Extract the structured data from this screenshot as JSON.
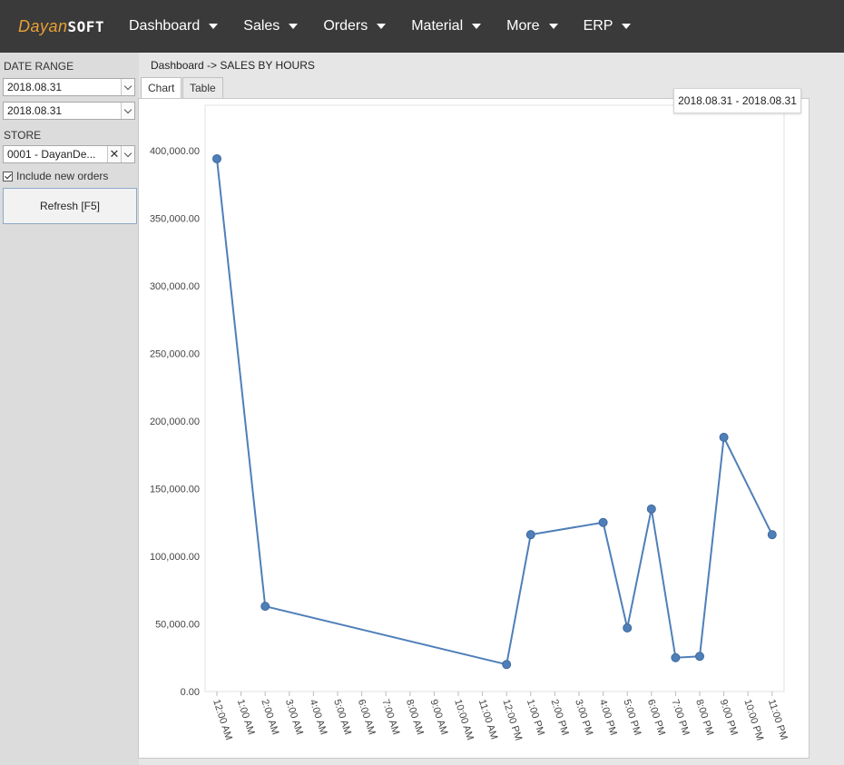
{
  "header": {
    "logo_part1": "Dayan",
    "logo_part2": "SOFT",
    "nav": [
      {
        "label": "Dashboard"
      },
      {
        "label": "Sales"
      },
      {
        "label": "Orders"
      },
      {
        "label": "Material"
      },
      {
        "label": "More"
      },
      {
        "label": "ERP"
      }
    ]
  },
  "sidebar": {
    "date_range_label": "DATE RANGE",
    "date_from": "2018.08.31",
    "date_to": "2018.08.31",
    "store_label": "STORE",
    "store_value": "0001 - DayanDe...",
    "include_new_orders_label": "Include new orders",
    "include_new_orders_checked": true,
    "refresh_label": "Refresh [F5]"
  },
  "breadcrumb": "Dashboard -> SALES BY HOURS",
  "tabs": [
    {
      "label": "Chart",
      "active": true
    },
    {
      "label": "Table",
      "active": false
    }
  ],
  "date_badge": "2018.08.31 - 2018.08.31",
  "colors": {
    "accent": "#e8a035",
    "topbar": "#3a3a3a",
    "series": "#4f7fb8"
  },
  "chart_data": {
    "type": "line",
    "title": "",
    "xlabel": "",
    "ylabel": "",
    "categories": [
      "12:00 AM",
      "1:00 AM",
      "2:00 AM",
      "3:00 AM",
      "4:00 AM",
      "5:00 AM",
      "6:00 AM",
      "7:00 AM",
      "8:00 AM",
      "9:00 AM",
      "10:00 AM",
      "11:00 AM",
      "12:00 PM",
      "1:00 PM",
      "2:00 PM",
      "3:00 PM",
      "4:00 PM",
      "5:00 PM",
      "6:00 PM",
      "7:00 PM",
      "8:00 PM",
      "9:00 PM",
      "10:00 PM",
      "11:00 PM"
    ],
    "ylim": [
      0,
      400000
    ],
    "yticks": [
      "0.00",
      "50,000.00",
      "100,000.00",
      "150,000.00",
      "200,000.00",
      "250,000.00",
      "300,000.00",
      "350,000.00",
      "400,000.00"
    ],
    "series": [
      {
        "points": [
          {
            "x": "12:00 AM",
            "y": 394000
          },
          {
            "x": "2:00 AM",
            "y": 63000
          },
          {
            "x": "12:00 PM",
            "y": 20000
          },
          {
            "x": "1:00 PM",
            "y": 116000
          },
          {
            "x": "4:00 PM",
            "y": 125000
          },
          {
            "x": "5:00 PM",
            "y": 47000
          },
          {
            "x": "6:00 PM",
            "y": 135000
          },
          {
            "x": "7:00 PM",
            "y": 25000
          },
          {
            "x": "8:00 PM",
            "y": 26000
          },
          {
            "x": "9:00 PM",
            "y": 188000
          },
          {
            "x": "11:00 PM",
            "y": 116000
          }
        ]
      }
    ],
    "grid": false,
    "legend": "none"
  }
}
